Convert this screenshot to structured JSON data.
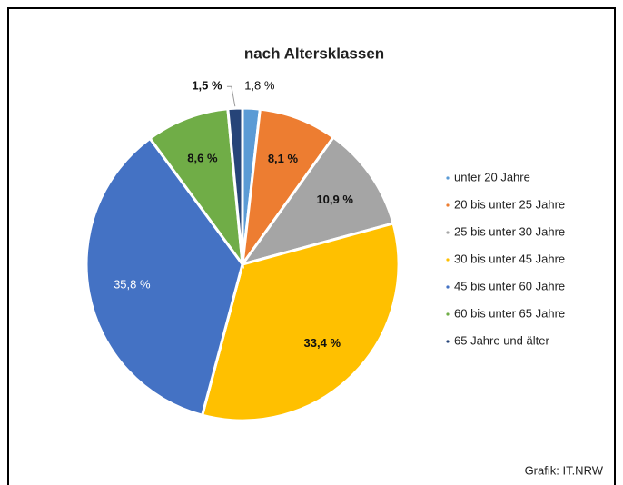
{
  "chart_data": {
    "type": "pie",
    "title": "nach Altersklassen",
    "categories": [
      "unter 20 Jahre",
      "20 bis unter 25 Jahre",
      "25 bis unter 30 Jahre",
      "30 bis unter 45 Jahre",
      "45 bis unter 60 Jahre",
      "60 bis unter 65 Jahre",
      "65 Jahre und älter"
    ],
    "values": [
      1.8,
      8.1,
      10.9,
      33.4,
      35.8,
      8.6,
      1.5
    ],
    "value_labels": [
      "1,8 %",
      "8,1 %",
      "10,9 %",
      "33,4 %",
      "35,8 %",
      "8,6 %",
      "1,5 %"
    ],
    "colors": [
      "#5b9bd5",
      "#ed7d31",
      "#a5a5a5",
      "#ffc000",
      "#4472c4",
      "#70ad47",
      "#264478"
    ],
    "legend": "right",
    "source": "Grafik: IT.NRW"
  }
}
